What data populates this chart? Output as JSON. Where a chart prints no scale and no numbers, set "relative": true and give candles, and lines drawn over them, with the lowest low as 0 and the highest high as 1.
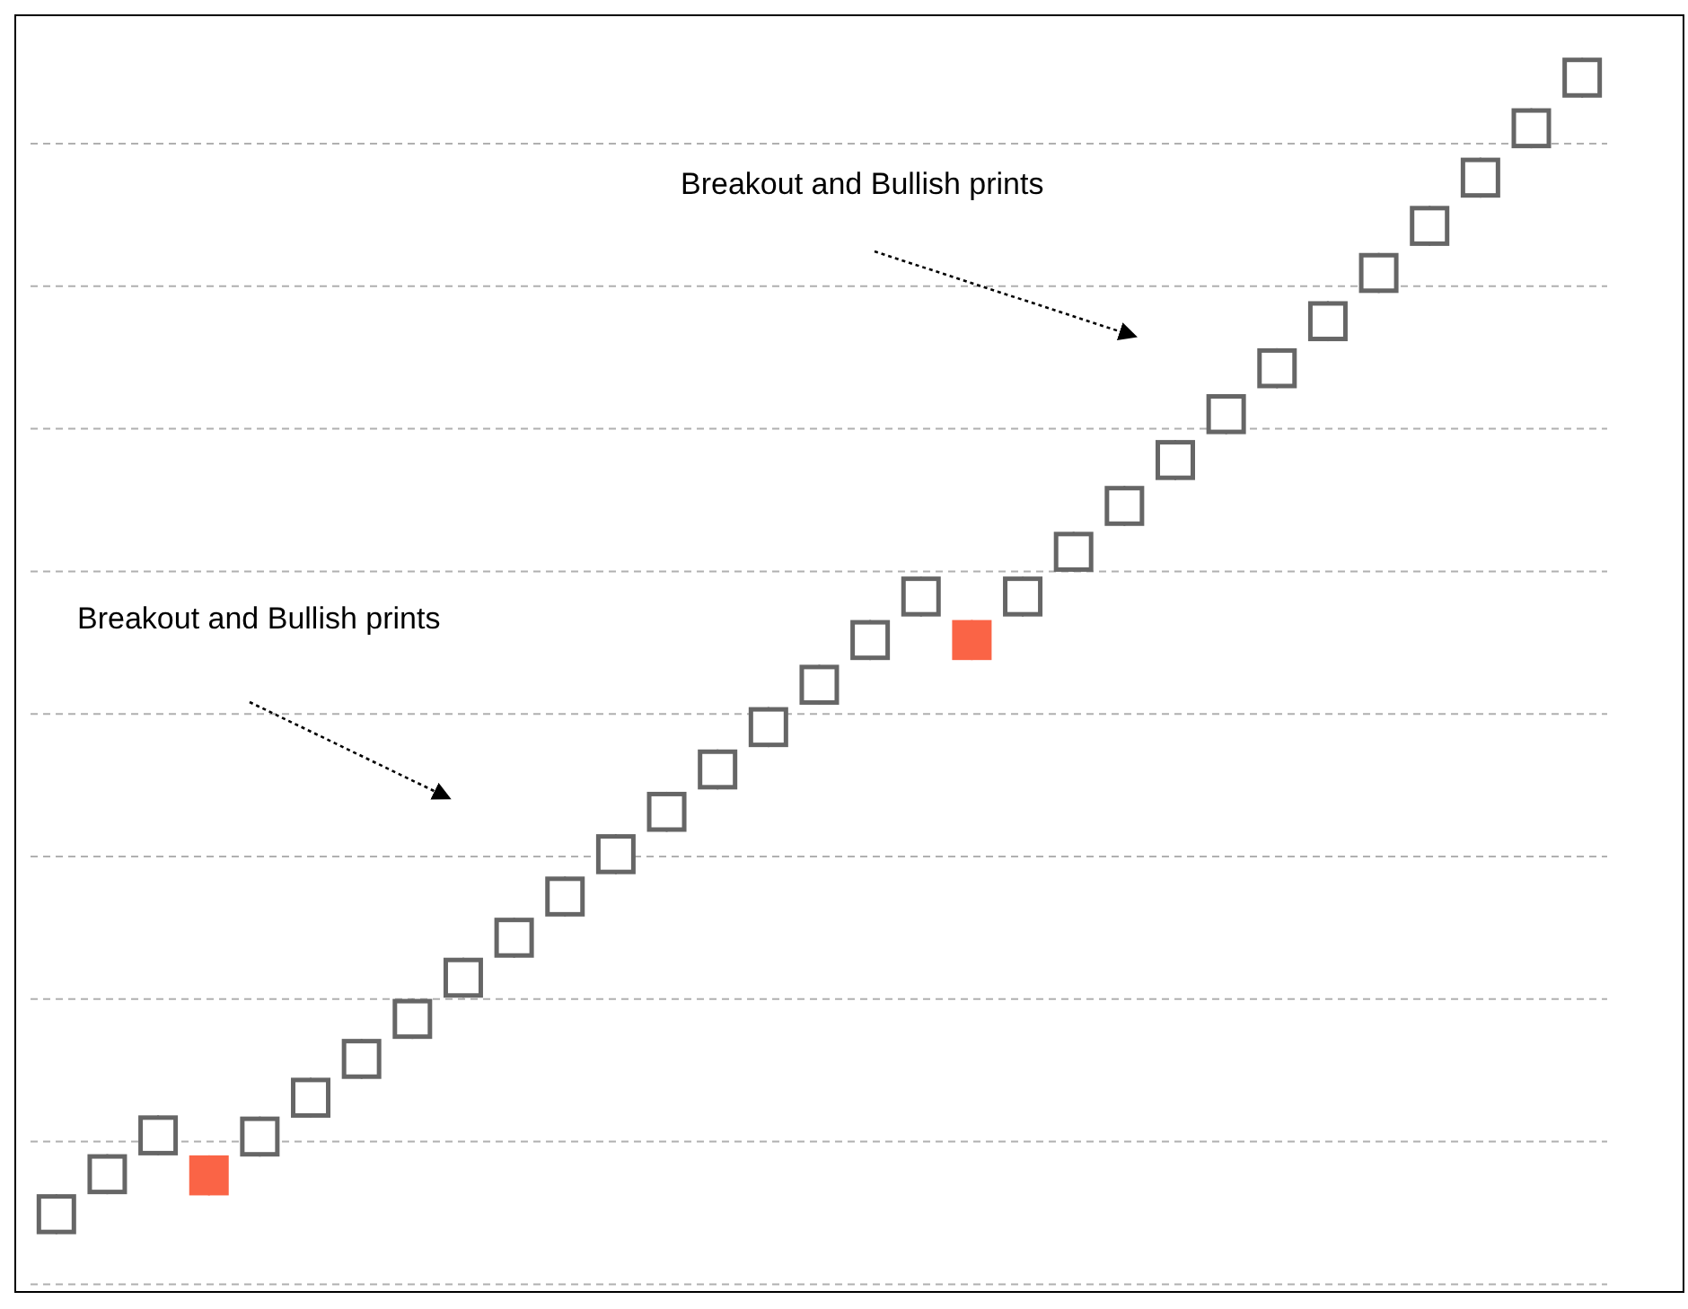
{
  "chart_data": {
    "type": "candlestick",
    "relative": true,
    "grid": "y",
    "categories": [
      null,
      null,
      null,
      null,
      null,
      null,
      null,
      null,
      null,
      null,
      null,
      null,
      null,
      null,
      null,
      null,
      null,
      null,
      null,
      null,
      null,
      null,
      null,
      null,
      null,
      null,
      null,
      null,
      null,
      null,
      null
    ],
    "ohlc": [
      [
        0,
        0.034,
        0,
        0.034
      ],
      [
        0.034,
        0.068,
        0.034,
        0.068
      ],
      [
        0.067,
        0.101,
        0.067,
        0.101
      ],
      [
        0.067,
        0.067,
        0.033,
        0.033
      ],
      [
        0.066,
        0.1,
        0.066,
        0.1
      ],
      [
        0.099,
        0.133,
        0.099,
        0.133
      ],
      [
        0.132,
        0.166,
        0.132,
        0.166
      ],
      [
        0.166,
        0.2,
        0.166,
        0.2
      ],
      [
        0.201,
        0.235,
        0.201,
        0.235
      ],
      [
        0.235,
        0.269,
        0.235,
        0.269
      ],
      [
        0.27,
        0.304,
        0.27,
        0.304
      ],
      [
        0.306,
        0.34,
        0.306,
        0.34
      ],
      [
        0.342,
        0.376,
        0.342,
        0.376
      ],
      [
        0.378,
        0.412,
        0.378,
        0.412
      ],
      [
        0.414,
        0.448,
        0.414,
        0.448
      ],
      [
        0.45,
        0.484,
        0.45,
        0.484
      ],
      [
        0.488,
        0.522,
        0.488,
        0.522
      ],
      [
        0.525,
        0.559,
        0.525,
        0.559
      ],
      [
        0.522,
        0.522,
        0.488,
        0.488
      ],
      [
        0.525,
        0.559,
        0.525,
        0.559
      ],
      [
        0.563,
        0.597,
        0.563,
        0.597
      ],
      [
        0.602,
        0.636,
        0.602,
        0.636
      ],
      [
        0.641,
        0.675,
        0.641,
        0.675
      ],
      [
        0.68,
        0.714,
        0.68,
        0.714
      ],
      [
        0.719,
        0.753,
        0.719,
        0.753
      ],
      [
        0.759,
        0.793,
        0.759,
        0.793
      ],
      [
        0.8,
        0.834,
        0.8,
        0.834
      ],
      [
        0.84,
        0.874,
        0.84,
        0.874
      ],
      [
        0.881,
        0.915,
        0.881,
        0.915
      ],
      [
        0.923,
        0.957,
        0.923,
        0.957
      ],
      [
        0.966,
        1.0,
        0.966,
        1.0
      ]
    ],
    "colors": [
      "#666666",
      "#666666",
      "#666666",
      "#fa6446",
      "#666666",
      "#666666",
      "#666666",
      "#666666",
      "#666666",
      "#666666",
      "#666666",
      "#666666",
      "#666666",
      "#666666",
      "#666666",
      "#666666",
      "#666666",
      "#666666",
      "#fa6446",
      "#666666",
      "#666666",
      "#666666",
      "#666666",
      "#666666",
      "#666666",
      "#666666",
      "#666666",
      "#666666",
      "#666666",
      "#666666",
      "#666666"
    ],
    "annotations": [
      "Breakout and Bullish prints",
      "Breakout and Bullish prints"
    ]
  }
}
